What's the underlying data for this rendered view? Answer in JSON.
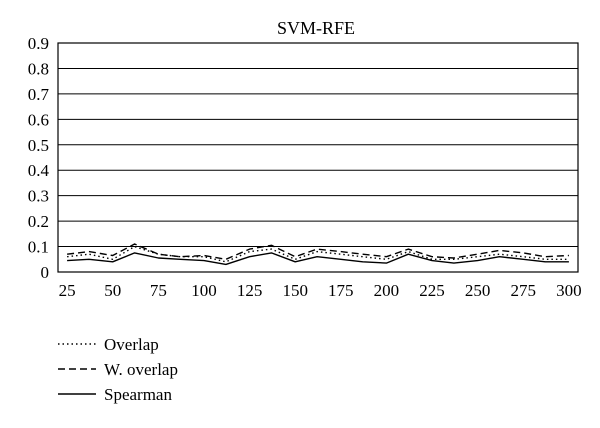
{
  "chart_data": {
    "type": "line",
    "title": "SVM-RFE",
    "xlabel": "",
    "ylabel": "",
    "x": [
      25,
      37,
      50,
      62,
      75,
      87,
      100,
      112,
      125,
      137,
      150,
      162,
      175,
      187,
      200,
      212,
      225,
      237,
      250,
      262,
      275,
      287,
      300
    ],
    "x_ticks": [
      "25",
      "50",
      "75",
      "100",
      "125",
      "150",
      "175",
      "200",
      "225",
      "250",
      "275",
      "300"
    ],
    "y_ticks": [
      "0",
      "0.1",
      "0.2",
      "0.3",
      "0.4",
      "0.5",
      "0.6",
      "0.7",
      "0.8",
      "0.9"
    ],
    "xlim": [
      20,
      305
    ],
    "ylim": [
      0,
      0.9
    ],
    "grid": "horizontal",
    "legend_position": "bottom-left",
    "series": [
      {
        "name": "Overlap",
        "style": "dotted",
        "values": [
          0.06,
          0.07,
          0.05,
          0.1,
          0.07,
          0.06,
          0.06,
          0.04,
          0.08,
          0.09,
          0.05,
          0.08,
          0.07,
          0.06,
          0.05,
          0.08,
          0.05,
          0.05,
          0.06,
          0.07,
          0.06,
          0.05,
          0.05
        ]
      },
      {
        "name": "W. overlap",
        "style": "dashed",
        "values": [
          0.07,
          0.08,
          0.065,
          0.11,
          0.07,
          0.06,
          0.065,
          0.05,
          0.09,
          0.105,
          0.06,
          0.09,
          0.08,
          0.07,
          0.06,
          0.09,
          0.06,
          0.055,
          0.07,
          0.085,
          0.075,
          0.06,
          0.065
        ]
      },
      {
        "name": "Spearman",
        "style": "solid",
        "values": [
          0.045,
          0.05,
          0.04,
          0.075,
          0.055,
          0.05,
          0.045,
          0.03,
          0.06,
          0.075,
          0.04,
          0.06,
          0.05,
          0.04,
          0.035,
          0.07,
          0.045,
          0.035,
          0.045,
          0.06,
          0.05,
          0.04,
          0.04
        ]
      }
    ]
  }
}
